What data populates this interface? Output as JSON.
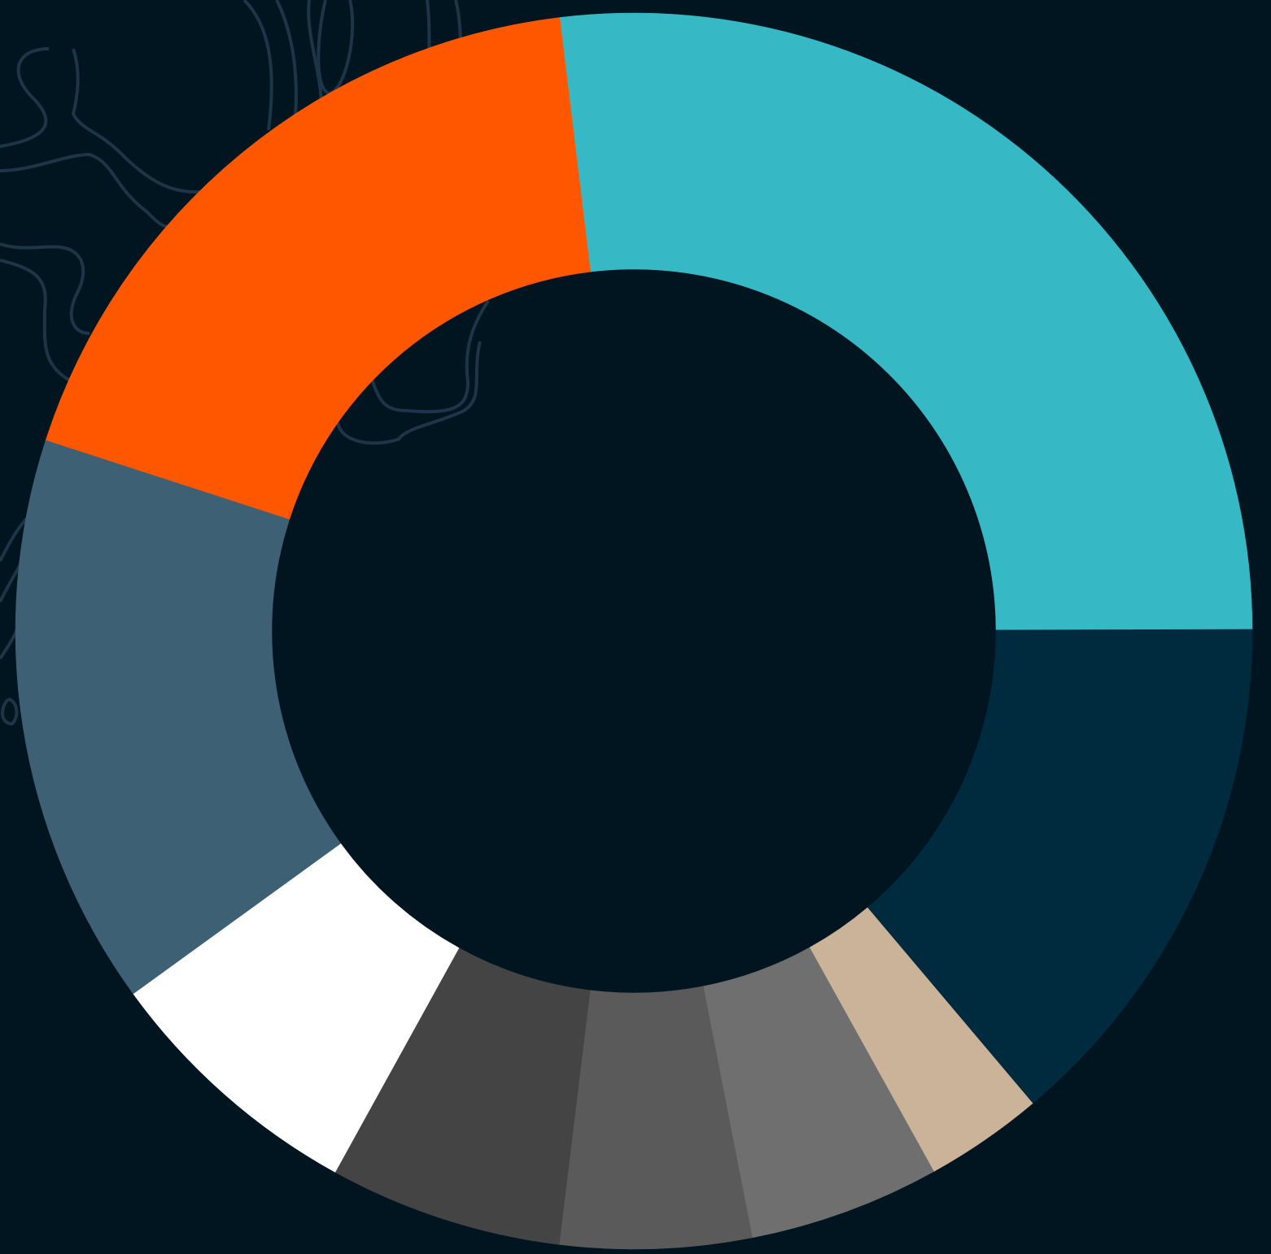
{
  "chart_data": {
    "type": "donut",
    "categories": [
      null,
      null,
      null,
      null,
      null,
      null,
      null,
      null,
      null,
      null
    ],
    "values": [
      26.9,
      4.7,
      9.2,
      3.1,
      5,
      5,
      6.1,
      7,
      15,
      18.1
    ],
    "colors": [
      "#37b8c5",
      "#002b3f",
      "#002b3f",
      "#cbb399",
      "#6f6f6f",
      "#5a5a5a",
      "#444444",
      "#ffffff",
      "#3e6075",
      "#ff5700"
    ]
  }
}
